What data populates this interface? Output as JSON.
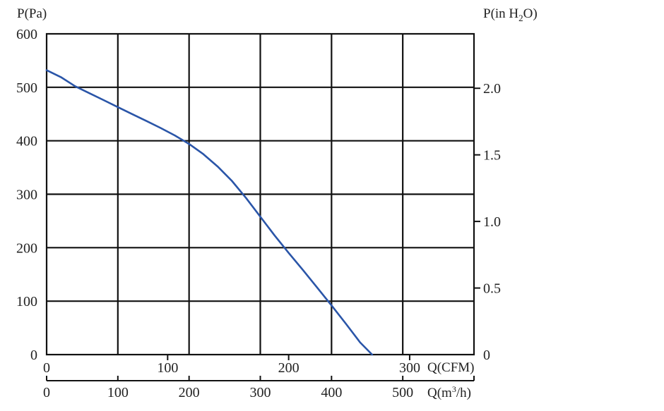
{
  "chart_data": {
    "type": "line",
    "y_axis_left": {
      "label": "P(Pa)",
      "ticks": [
        "600",
        "500",
        "400",
        "300",
        "200",
        "100",
        "0"
      ],
      "range": [
        0,
        600
      ]
    },
    "y_axis_right": {
      "label_main": "P(in H",
      "label_sub": "2",
      "label_tail": "O)",
      "ticks": [
        "2.0",
        "1.5",
        "1.0",
        "0.5",
        "0"
      ],
      "values": [
        2.0,
        1.5,
        1.0,
        0.5,
        0
      ]
    },
    "x_axis_cfm": {
      "label": "Q(CFM)",
      "ticks": [
        "0",
        "100",
        "200",
        "300"
      ],
      "values": [
        0,
        100,
        200,
        300
      ]
    },
    "x_axis_m3h": {
      "label_main": "Q(m",
      "label_sup": "3",
      "label_tail": "/h)",
      "ticks": [
        "0",
        "100",
        "200",
        "300",
        "400",
        "500"
      ],
      "range": [
        0,
        600
      ]
    },
    "grid": true,
    "series": [
      {
        "color": "#2a55a8",
        "points": [
          [
            0,
            532
          ],
          [
            20,
            519
          ],
          [
            40,
            502
          ],
          [
            60,
            489
          ],
          [
            80,
            476
          ],
          [
            100,
            463
          ],
          [
            120,
            450
          ],
          [
            140,
            437
          ],
          [
            160,
            424
          ],
          [
            180,
            410
          ],
          [
            200,
            394
          ],
          [
            220,
            375
          ],
          [
            240,
            352
          ],
          [
            260,
            325
          ],
          [
            280,
            293
          ],
          [
            300,
            258
          ],
          [
            320,
            223
          ],
          [
            340,
            190
          ],
          [
            360,
            158
          ],
          [
            380,
            125
          ],
          [
            400,
            92
          ],
          [
            420,
            58
          ],
          [
            440,
            23
          ],
          [
            457,
            0
          ]
        ]
      }
    ]
  }
}
